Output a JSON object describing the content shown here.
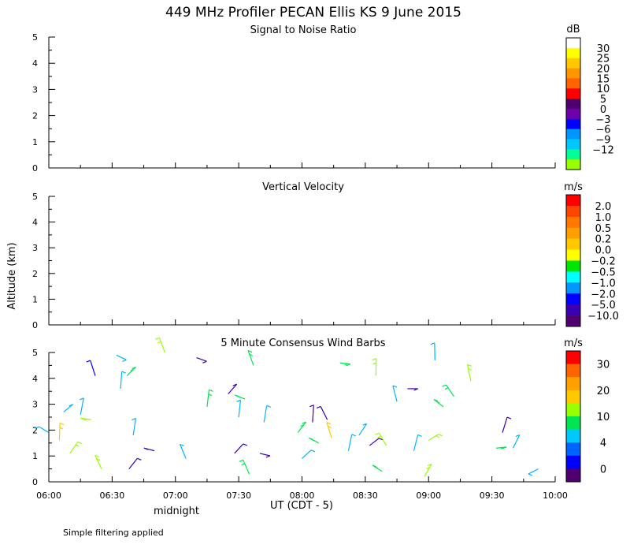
{
  "title": "449 MHz Profiler PECAN Ellis KS  9 June 2015",
  "ylabel": "Altitude (km)",
  "xlabel": "UT  (CDT - 5)",
  "x_annotation": "midnight",
  "footnote": "Simple filtering applied",
  "chart_data": [
    {
      "type": "heatmap",
      "title": "Signal to Noise Ratio",
      "xlim": [
        "06:00",
        "10:00"
      ],
      "ylim": [
        0,
        5
      ],
      "y_ticks": [
        "0",
        "1",
        "2",
        "3",
        "4",
        "5"
      ],
      "x_ticks": [],
      "values": [],
      "colorbar": {
        "unit": "dB",
        "labels": [
          "30",
          "25",
          "20",
          "15",
          "10",
          "5",
          "0",
          "−3",
          "−6",
          "−9",
          "−12"
        ],
        "colors": [
          "#ffffff",
          "#ffff00",
          "#ffc800",
          "#ff9600",
          "#ff6400",
          "#ff0000",
          "#50006e",
          "#6e00aa",
          "#0000ff",
          "#0096ff",
          "#00c8ff",
          "#00ff96",
          "#96ff00"
        ]
      }
    },
    {
      "type": "heatmap",
      "title": "Vertical Velocity",
      "xlim": [
        "06:00",
        "10:00"
      ],
      "ylim": [
        0,
        5
      ],
      "y_ticks": [
        "0",
        "1",
        "2",
        "3",
        "4",
        "5"
      ],
      "x_ticks": [],
      "values": [],
      "colorbar": {
        "unit": "m/s",
        "labels": [
          "2.0",
          "1.0",
          "0.5",
          "0.2",
          "0.0",
          "−0.2",
          "−0.5",
          "−1.0",
          "−2.0",
          "−5.0",
          "−10.0"
        ],
        "colors": [
          "#ff0000",
          "#ff4600",
          "#ff7800",
          "#ffa000",
          "#ffc800",
          "#ffff00",
          "#00e600",
          "#00ffff",
          "#0096ff",
          "#0000ff",
          "#3c00b4",
          "#50006e"
        ]
      }
    },
    {
      "type": "scatter",
      "title": "5 Minute Consensus Wind Barbs",
      "xlim": [
        "06:00",
        "10:00"
      ],
      "ylim": [
        0,
        5
      ],
      "y_ticks": [
        "0",
        "1",
        "2",
        "3",
        "4",
        "5"
      ],
      "x_ticks": [
        "06:00",
        "06:30",
        "07:00",
        "07:30",
        "08:00",
        "08:30",
        "09:00",
        "09:30",
        "10:00"
      ],
      "colorbar": {
        "unit": "m/s",
        "labels": [
          "30",
          "20",
          "10",
          "4",
          "0"
        ],
        "colors": [
          "#ff0000",
          "#ff6400",
          "#ffa000",
          "#ffc800",
          "#96ff00",
          "#00e650",
          "#00c8ff",
          "#0064ff",
          "#0000ff",
          "#50006e"
        ]
      },
      "points": [
        {
          "t": "06:00",
          "alt": 1.9,
          "speed": 6
        },
        {
          "t": "06:05",
          "alt": 1.6,
          "speed": 14
        },
        {
          "t": "06:07",
          "alt": 2.7,
          "speed": 6
        },
        {
          "t": "06:10",
          "alt": 1.1,
          "speed": 10
        },
        {
          "t": "06:15",
          "alt": 2.6,
          "speed": 5
        },
        {
          "t": "06:20",
          "alt": 2.4,
          "speed": 11
        },
        {
          "t": "06:22",
          "alt": 4.1,
          "speed": 3
        },
        {
          "t": "06:25",
          "alt": 0.5,
          "speed": 12
        },
        {
          "t": "06:32",
          "alt": 4.9,
          "speed": 5
        },
        {
          "t": "06:34",
          "alt": 3.6,
          "speed": 5
        },
        {
          "t": "06:37",
          "alt": 4.1,
          "speed": 8
        },
        {
          "t": "06:38",
          "alt": 0.5,
          "speed": 2
        },
        {
          "t": "06:40",
          "alt": 1.8,
          "speed": 5
        },
        {
          "t": "06:50",
          "alt": 1.2,
          "speed": 2
        },
        {
          "t": "06:55",
          "alt": 5.0,
          "speed": 11
        },
        {
          "t": "07:05",
          "alt": 0.9,
          "speed": 5
        },
        {
          "t": "07:10",
          "alt": 4.8,
          "speed": 2
        },
        {
          "t": "07:15",
          "alt": 2.9,
          "speed": 8
        },
        {
          "t": "07:25",
          "alt": 3.4,
          "speed": 2
        },
        {
          "t": "07:28",
          "alt": 1.1,
          "speed": 2
        },
        {
          "t": "07:30",
          "alt": 2.5,
          "speed": 5
        },
        {
          "t": "07:33",
          "alt": 3.2,
          "speed": 8
        },
        {
          "t": "07:35",
          "alt": 0.3,
          "speed": 8
        },
        {
          "t": "07:37",
          "alt": 4.5,
          "speed": 8
        },
        {
          "t": "07:40",
          "alt": 1.1,
          "speed": 2
        },
        {
          "t": "07:42",
          "alt": 2.3,
          "speed": 5
        },
        {
          "t": "07:58",
          "alt": 1.9,
          "speed": 8
        },
        {
          "t": "08:00",
          "alt": 0.9,
          "speed": 5
        },
        {
          "t": "08:05",
          "alt": 2.3,
          "speed": 2
        },
        {
          "t": "08:08",
          "alt": 1.5,
          "speed": 8
        },
        {
          "t": "08:12",
          "alt": 2.4,
          "speed": 2
        },
        {
          "t": "08:14",
          "alt": 1.7,
          "speed": 14
        },
        {
          "t": "08:18",
          "alt": 4.6,
          "speed": 8
        },
        {
          "t": "08:22",
          "alt": 1.2,
          "speed": 5
        },
        {
          "t": "08:27",
          "alt": 1.8,
          "speed": 5
        },
        {
          "t": "08:32",
          "alt": 1.4,
          "speed": 2
        },
        {
          "t": "08:35",
          "alt": 4.1,
          "speed": 11
        },
        {
          "t": "08:38",
          "alt": 0.4,
          "speed": 8
        },
        {
          "t": "08:40",
          "alt": 1.4,
          "speed": 11
        },
        {
          "t": "08:45",
          "alt": 3.1,
          "speed": 5
        },
        {
          "t": "08:50",
          "alt": 3.6,
          "speed": 2
        },
        {
          "t": "08:53",
          "alt": 1.2,
          "speed": 5
        },
        {
          "t": "08:58",
          "alt": 0.2,
          "speed": 11
        },
        {
          "t": "09:00",
          "alt": 1.6,
          "speed": 11
        },
        {
          "t": "09:03",
          "alt": 4.7,
          "speed": 5
        },
        {
          "t": "09:07",
          "alt": 2.9,
          "speed": 8
        },
        {
          "t": "09:12",
          "alt": 3.3,
          "speed": 8
        },
        {
          "t": "09:20",
          "alt": 3.9,
          "speed": 11
        },
        {
          "t": "09:32",
          "alt": 1.3,
          "speed": 8
        },
        {
          "t": "09:35",
          "alt": 1.9,
          "speed": 2
        },
        {
          "t": "09:40",
          "alt": 1.3,
          "speed": 5
        },
        {
          "t": "09:52",
          "alt": 0.5,
          "speed": 5
        }
      ]
    }
  ]
}
